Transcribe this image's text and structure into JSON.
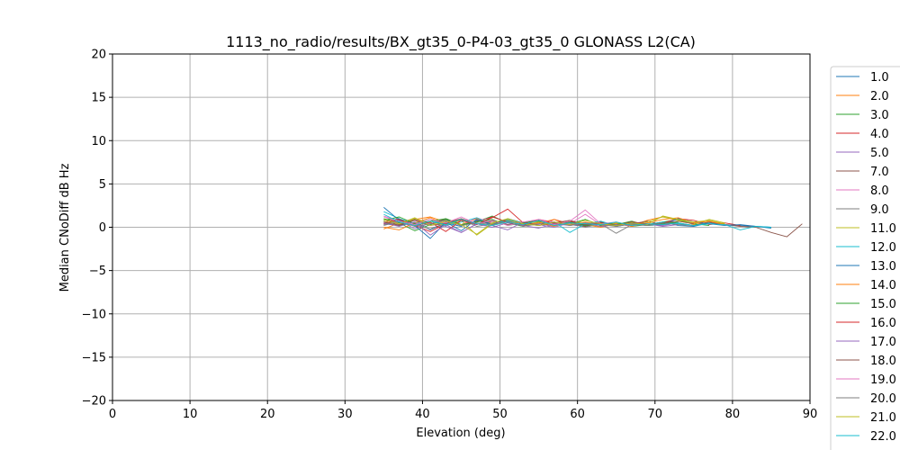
{
  "chart_data": {
    "type": "line",
    "title": "1113_no_radio/results/BX_gt35_0-P4-03_gt35_0 GLONASS L2(CA)",
    "xlabel": "Elevation (deg)",
    "ylabel": "Median CNoDiff dB Hz",
    "xlim": [
      0,
      90
    ],
    "ylim": [
      -20,
      20
    ],
    "xticks": [
      0,
      10,
      20,
      30,
      40,
      50,
      60,
      70,
      80,
      90
    ],
    "yticks": [
      -20,
      -15,
      -10,
      -5,
      0,
      5,
      10,
      15,
      20
    ],
    "grid": true,
    "legend_position": "right, outside plot",
    "legend_visible_partial": "24.0",
    "series": [
      {
        "name": "1.0",
        "color": "#1f77b4",
        "x": [
          35,
          37,
          39,
          41,
          43,
          45,
          47,
          49,
          51,
          53,
          55,
          57,
          59,
          61,
          63,
          65,
          67,
          69,
          71,
          73,
          75,
          77,
          79,
          81,
          83,
          85
        ],
        "y": [
          0.4,
          0.2,
          0.6,
          -0.3,
          0.5,
          0.1,
          0.8,
          0.3,
          0.9,
          0.4,
          0.2,
          0.6,
          0.3,
          0.1,
          0.5,
          0.2,
          0.4,
          0.3,
          0.6,
          0.2,
          0.1,
          0.5,
          0.3,
          0.2,
          0.1,
          0.0
        ]
      },
      {
        "name": "2.0",
        "color": "#ff7f0e",
        "x": [
          35,
          37,
          39,
          41,
          43,
          45,
          47,
          49,
          51,
          53,
          55,
          57,
          59,
          61,
          63,
          65,
          67,
          69,
          71,
          73,
          75,
          77,
          79
        ],
        "y": [
          -0.2,
          0.5,
          0.9,
          1.2,
          0.6,
          0.3,
          1.0,
          0.4,
          0.7,
          0.2,
          0.5,
          0.1,
          0.6,
          0.3,
          0.0,
          0.4,
          0.2,
          0.8,
          1.2,
          0.9,
          0.3,
          0.6,
          0.4
        ]
      },
      {
        "name": "3.0",
        "color": "#2ca02c",
        "x": [
          35,
          37,
          39,
          41,
          43,
          45,
          47,
          49,
          51,
          53,
          55,
          57,
          59,
          61,
          63,
          65,
          67,
          69,
          71,
          73,
          75,
          77
        ],
        "y": [
          1.0,
          0.5,
          -0.4,
          0.3,
          0.9,
          0.2,
          0.6,
          1.3,
          0.5,
          0.1,
          0.7,
          0.3,
          0.4,
          0.9,
          0.2,
          0.5,
          0.1,
          0.3,
          0.6,
          0.9,
          0.4,
          0.2
        ]
      },
      {
        "name": "4.0",
        "color": "#d62728",
        "x": [
          35,
          37,
          39,
          41,
          43,
          45,
          47,
          49,
          51,
          53,
          55,
          57,
          59,
          61,
          63,
          65,
          67,
          69,
          71,
          73,
          75,
          77,
          79,
          81
        ],
        "y": [
          0.6,
          1.0,
          0.2,
          -0.5,
          0.4,
          0.8,
          0.3,
          1.1,
          2.1,
          0.5,
          0.2,
          0.9,
          0.4,
          0.1,
          0.6,
          0.3,
          0.7,
          0.2,
          0.5,
          1.0,
          0.8,
          0.3,
          0.5,
          0.2
        ]
      },
      {
        "name": "5.0",
        "color": "#9467bd",
        "x": [
          35,
          37,
          39,
          41,
          43,
          45,
          47,
          49,
          51,
          53,
          55,
          57,
          59,
          61,
          63,
          65,
          67,
          69,
          71,
          73
        ],
        "y": [
          0.3,
          0.8,
          -0.2,
          0.5,
          0.1,
          -0.6,
          0.4,
          0.2,
          -0.3,
          0.6,
          0.3,
          0.0,
          0.5,
          0.2,
          0.7,
          0.1,
          0.4,
          0.3,
          0.2,
          0.5
        ]
      },
      {
        "name": "7.0",
        "color": "#8c564b",
        "x": [
          35,
          37,
          39,
          41,
          43,
          45,
          47,
          49,
          51,
          53,
          55,
          57,
          59,
          61,
          63,
          65,
          67,
          69,
          71,
          73,
          75,
          77,
          79,
          81,
          83,
          85,
          87,
          89
        ],
        "y": [
          0.5,
          0.2,
          0.9,
          0.4,
          1.0,
          0.3,
          0.7,
          1.2,
          0.6,
          0.4,
          0.8,
          0.3,
          0.5,
          0.1,
          0.6,
          0.2,
          0.4,
          0.7,
          0.3,
          0.5,
          0.2,
          0.6,
          0.3,
          0.1,
          0.0,
          -0.6,
          -1.1,
          0.4
        ]
      },
      {
        "name": "8.0",
        "color": "#e377c2",
        "x": [
          35,
          37,
          39,
          41,
          43,
          45,
          47,
          49,
          51,
          53,
          55,
          57,
          59,
          61,
          63,
          65,
          67
        ],
        "y": [
          1.2,
          0.6,
          1.0,
          0.4,
          0.8,
          0.2,
          1.1,
          0.5,
          0.7,
          0.3,
          0.9,
          0.6,
          0.4,
          1.5,
          0.3,
          0.6,
          0.2
        ]
      },
      {
        "name": "9.0",
        "color": "#7f7f7f",
        "x": [
          35,
          37,
          39,
          41,
          43,
          45,
          47,
          49,
          51,
          53,
          55,
          57,
          59,
          61,
          63,
          65,
          67,
          69
        ],
        "y": [
          0.2,
          0.7,
          0.3,
          -0.2,
          0.5,
          0.9,
          0.1,
          0.4,
          0.8,
          0.2,
          0.6,
          0.3,
          0.5,
          0.0,
          0.4,
          -0.7,
          0.3,
          0.2
        ]
      },
      {
        "name": "11.0",
        "color": "#bcbd22",
        "x": [
          35,
          37,
          39,
          41,
          43,
          45,
          47,
          49,
          51,
          53,
          55,
          57,
          59,
          61,
          63,
          65,
          67,
          69,
          71,
          73,
          75,
          77,
          79
        ],
        "y": [
          0.7,
          0.3,
          1.0,
          0.5,
          0.2,
          0.8,
          -0.9,
          0.4,
          0.9,
          0.3,
          0.6,
          0.2,
          0.7,
          0.4,
          0.1,
          0.5,
          0.3,
          0.6,
          1.2,
          0.8,
          0.4,
          0.9,
          0.5
        ]
      },
      {
        "name": "12.0",
        "color": "#17becf",
        "x": [
          35,
          37,
          39,
          41,
          43,
          45,
          47,
          49,
          51,
          53,
          55,
          57,
          59,
          61,
          63,
          65,
          67,
          69,
          71,
          73,
          75,
          77
        ],
        "y": [
          1.8,
          1.0,
          0.4,
          0.9,
          0.2,
          0.6,
          1.1,
          0.3,
          0.8,
          0.5,
          0.2,
          0.6,
          -0.6,
          0.4,
          0.7,
          0.2,
          0.5,
          0.3,
          0.6,
          0.4,
          0.2,
          0.5
        ]
      },
      {
        "name": "13.0",
        "color": "#1f77b4",
        "x": [
          35,
          37,
          39,
          41,
          43,
          45,
          47,
          49,
          51,
          53,
          55,
          57,
          59,
          61,
          63,
          65,
          67,
          69,
          71,
          73,
          75,
          77,
          79,
          81,
          83,
          85
        ],
        "y": [
          2.3,
          0.8,
          0.2,
          -1.3,
          0.6,
          -0.4,
          0.9,
          0.3,
          1.0,
          0.5,
          0.8,
          0.2,
          0.6,
          0.3,
          0.5,
          0.1,
          0.4,
          0.2,
          0.3,
          1.0,
          0.6,
          0.4,
          0.2,
          0.3,
          0.1,
          -0.1
        ]
      },
      {
        "name": "14.0",
        "color": "#ff7f0e",
        "x": [
          35,
          37,
          39,
          41,
          43,
          45,
          47,
          49,
          51,
          53,
          55,
          57,
          59,
          61,
          63,
          65,
          67,
          69,
          71,
          73,
          75,
          77,
          79
        ],
        "y": [
          0.0,
          -0.3,
          0.5,
          1.1,
          0.3,
          0.8,
          0.4,
          0.2,
          0.7,
          0.3,
          0.5,
          0.9,
          0.2,
          0.6,
          0.3,
          0.4,
          0.1,
          0.5,
          0.9,
          1.1,
          0.5,
          0.7,
          0.3
        ]
      },
      {
        "name": "15.0",
        "color": "#2ca02c",
        "x": [
          35,
          37,
          39,
          41,
          43,
          45,
          47,
          49,
          51,
          53,
          55,
          57,
          59,
          61,
          63,
          65,
          67,
          69,
          71,
          73
        ],
        "y": [
          0.8,
          1.2,
          0.4,
          0.7,
          1.0,
          0.3,
          0.6,
          0.9,
          0.2,
          0.5,
          0.8,
          0.4,
          0.6,
          0.2,
          0.5,
          0.3,
          0.7,
          0.2,
          0.4,
          0.6
        ]
      },
      {
        "name": "16.0",
        "color": "#d62728",
        "x": [
          35,
          37,
          39,
          41,
          43,
          45,
          47,
          49,
          51,
          53,
          55,
          57,
          59,
          61,
          63,
          65,
          67,
          69,
          71
        ],
        "y": [
          0.4,
          0.9,
          0.2,
          0.6,
          -0.5,
          0.8,
          0.3,
          1.2,
          0.6,
          0.2,
          0.9,
          0.4,
          0.7,
          0.3,
          0.5,
          0.2,
          0.6,
          0.4,
          0.3
        ]
      },
      {
        "name": "17.0",
        "color": "#9467bd",
        "x": [
          35,
          37,
          39,
          41,
          43,
          45,
          47,
          49,
          51,
          53,
          55,
          57,
          59,
          61,
          63,
          65,
          67,
          69,
          71,
          73
        ],
        "y": [
          0.5,
          0.1,
          0.6,
          -0.9,
          0.3,
          -0.6,
          0.4,
          0.0,
          0.5,
          0.2,
          -0.1,
          0.4,
          0.2,
          0.5,
          0.1,
          0.3,
          0.2,
          0.4,
          0.1,
          0.3
        ]
      },
      {
        "name": "18.0",
        "color": "#8c564b",
        "x": [
          35,
          37,
          39,
          41,
          43,
          45,
          47,
          49,
          51,
          53,
          55,
          57,
          59,
          61,
          63,
          65,
          67,
          69,
          71,
          73,
          75
        ],
        "y": [
          0.6,
          0.3,
          0.8,
          0.2,
          0.5,
          1.0,
          0.4,
          0.7,
          0.3,
          0.6,
          0.2,
          0.5,
          0.8,
          0.3,
          0.4,
          0.2,
          0.6,
          0.3,
          0.5,
          0.7,
          0.4
        ]
      },
      {
        "name": "19.0",
        "color": "#e377c2",
        "x": [
          35,
          37,
          39,
          41,
          43,
          45,
          47,
          49,
          51,
          53,
          55,
          57,
          59,
          61,
          63,
          65
        ],
        "y": [
          1.3,
          0.7,
          0.3,
          0.9,
          0.5,
          1.2,
          0.4,
          0.8,
          0.2,
          0.6,
          0.9,
          0.3,
          0.7,
          2.0,
          0.4,
          0.6
        ]
      },
      {
        "name": "20.0",
        "color": "#7f7f7f",
        "x": [
          35,
          37,
          39,
          41,
          43,
          45,
          47,
          49,
          51,
          53,
          55,
          57,
          59,
          61,
          63,
          65,
          67,
          69,
          71,
          73,
          75
        ],
        "y": [
          0.3,
          0.6,
          0.1,
          0.4,
          0.8,
          0.2,
          0.5,
          0.3,
          0.7,
          0.1,
          0.4,
          0.6,
          0.2,
          0.5,
          0.3,
          0.1,
          0.4,
          0.2,
          0.5,
          0.3,
          0.2
        ]
      },
      {
        "name": "21.0",
        "color": "#bcbd22",
        "x": [
          35,
          37,
          39,
          41,
          43,
          45,
          47,
          49,
          51,
          53,
          55,
          57,
          59,
          61,
          63,
          65,
          67,
          69,
          71,
          73,
          75,
          77,
          79
        ],
        "y": [
          0.9,
          0.4,
          1.1,
          0.2,
          0.7,
          0.3,
          -0.8,
          0.5,
          1.0,
          0.4,
          0.2,
          0.6,
          0.3,
          0.8,
          0.4,
          0.2,
          0.5,
          0.3,
          1.3,
          0.9,
          0.6,
          0.8,
          0.4
        ]
      },
      {
        "name": "22.0",
        "color": "#17becf",
        "x": [
          35,
          37,
          39,
          41,
          43,
          45,
          47,
          49,
          51,
          53,
          55,
          57,
          59,
          61,
          63,
          65,
          67,
          69,
          71,
          73,
          75,
          77,
          79,
          81,
          83,
          85
        ],
        "y": [
          1.5,
          0.6,
          0.2,
          0.7,
          0.3,
          0.9,
          0.4,
          0.2,
          0.6,
          0.3,
          0.8,
          0.2,
          0.5,
          0.4,
          0.3,
          0.6,
          0.2,
          0.4,
          0.3,
          0.5,
          0.2,
          0.4,
          0.3,
          -0.3,
          0.1,
          0.0
        ]
      }
    ]
  }
}
